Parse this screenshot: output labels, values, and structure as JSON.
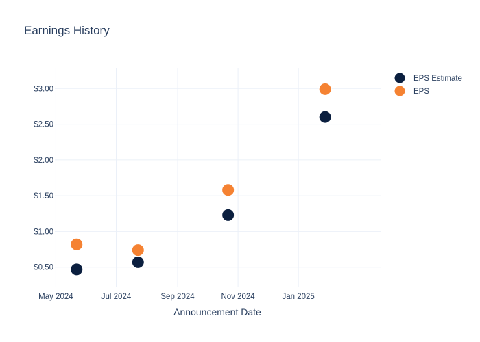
{
  "chart_data": {
    "type": "scatter",
    "title": "Earnings History",
    "xlabel": "Announcement Date",
    "ylabel": "",
    "x_tick_labels": [
      {
        "date": "2024-05-01",
        "label": "May 2024"
      },
      {
        "date": "2024-07-01",
        "label": "Jul 2024"
      },
      {
        "date": "2024-09-01",
        "label": "Sep 2024"
      },
      {
        "date": "2024-11-01",
        "label": "Nov 2024"
      },
      {
        "date": "2025-01-01",
        "label": "Jan 2025"
      }
    ],
    "y_tick_labels": [
      {
        "value": 0.5,
        "label": "$0.50"
      },
      {
        "value": 1.0,
        "label": "$1.00"
      },
      {
        "value": 1.5,
        "label": "$1.50"
      },
      {
        "value": 2.0,
        "label": "$2.00"
      },
      {
        "value": 2.5,
        "label": "$2.50"
      },
      {
        "value": 3.0,
        "label": "$3.00"
      }
    ],
    "xlim": [
      "2024-04-30",
      "2025-03-25"
    ],
    "ylim": [
      0.22,
      3.28
    ],
    "grid": true,
    "legend_position": "top-right",
    "series": [
      {
        "name": "EPS Estimate",
        "color": "#0b1f3f",
        "points": [
          {
            "x": "2024-05-22",
            "y": 0.47
          },
          {
            "x": "2024-07-23",
            "y": 0.57
          },
          {
            "x": "2024-10-22",
            "y": 1.23
          },
          {
            "x": "2025-01-28",
            "y": 2.6
          }
        ]
      },
      {
        "name": "EPS",
        "color": "#f58232",
        "points": [
          {
            "x": "2024-05-22",
            "y": 0.82
          },
          {
            "x": "2024-07-23",
            "y": 0.74
          },
          {
            "x": "2024-10-22",
            "y": 1.58
          },
          {
            "x": "2025-01-28",
            "y": 2.99
          }
        ]
      }
    ]
  }
}
